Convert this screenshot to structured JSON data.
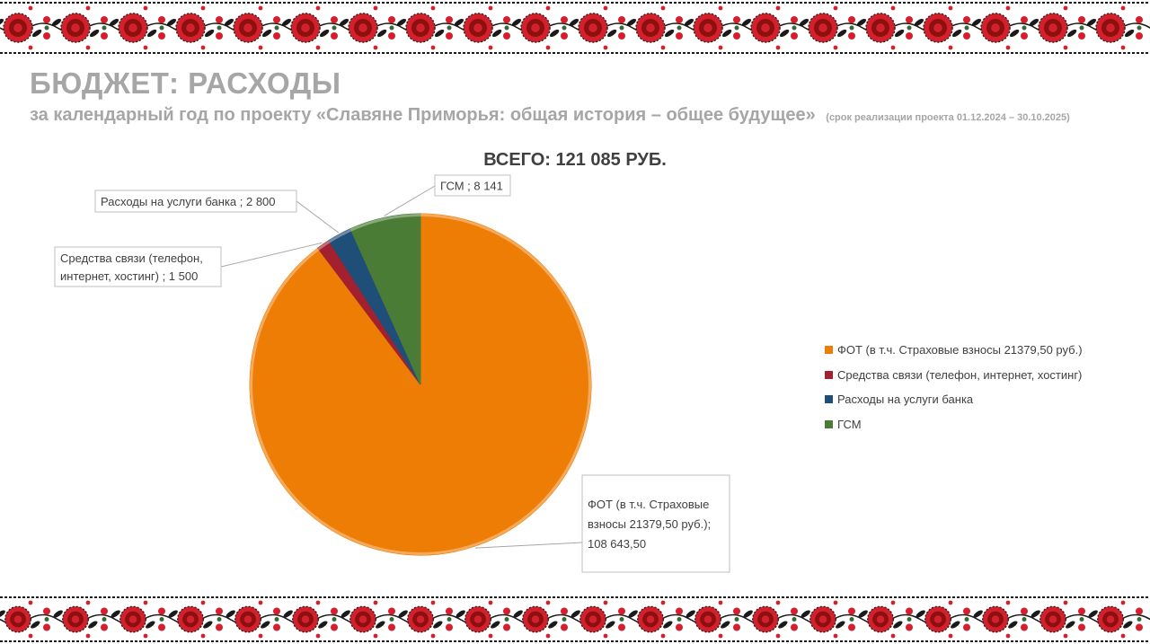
{
  "title": "БЮДЖЕТ: РАСХОДЫ",
  "subtitle": "за календарный год по проекту «Славяне Приморья: общая история – общее будущее»",
  "subtitle_note": "(срок реализации проекта 01.12.2024 – 30.10.2025)",
  "ornament_colors": {
    "red": "#d3202d",
    "dark_red": "#8c1010",
    "black": "#1a1a1a",
    "green": "#2f6b33"
  },
  "chart_data": {
    "type": "pie",
    "title": "ВСЕГО: 121 085 РУБ.",
    "start_angle_deg": 0,
    "direction": "clockwise",
    "legend_position": "right",
    "slices": [
      {
        "name": "ФОТ (в т.ч. Страховые взносы 21379,50 руб.)",
        "value": 108643.5,
        "data_label": [
          "ФОТ (в т.ч. Страховые",
          "взносы 21379,50 руб.);",
          "108 643,50"
        ],
        "color": "#ed7d05"
      },
      {
        "name": "Средства связи (телефон, интернет, хостинг)",
        "value": 1500,
        "data_label": [
          "Средства связи (телефон,",
          "интернет, хостинг) ; 1 500"
        ],
        "color": "#a3212e"
      },
      {
        "name": "Расходы на услуги банка",
        "value": 2800,
        "data_label": [
          "Расходы на услуги банка ; 2 800"
        ],
        "color": "#1f4e79"
      },
      {
        "name": "ГСМ",
        "value": 8141,
        "data_label": [
          "ГСМ ; 8 141"
        ],
        "color": "#4a7c36"
      }
    ]
  }
}
